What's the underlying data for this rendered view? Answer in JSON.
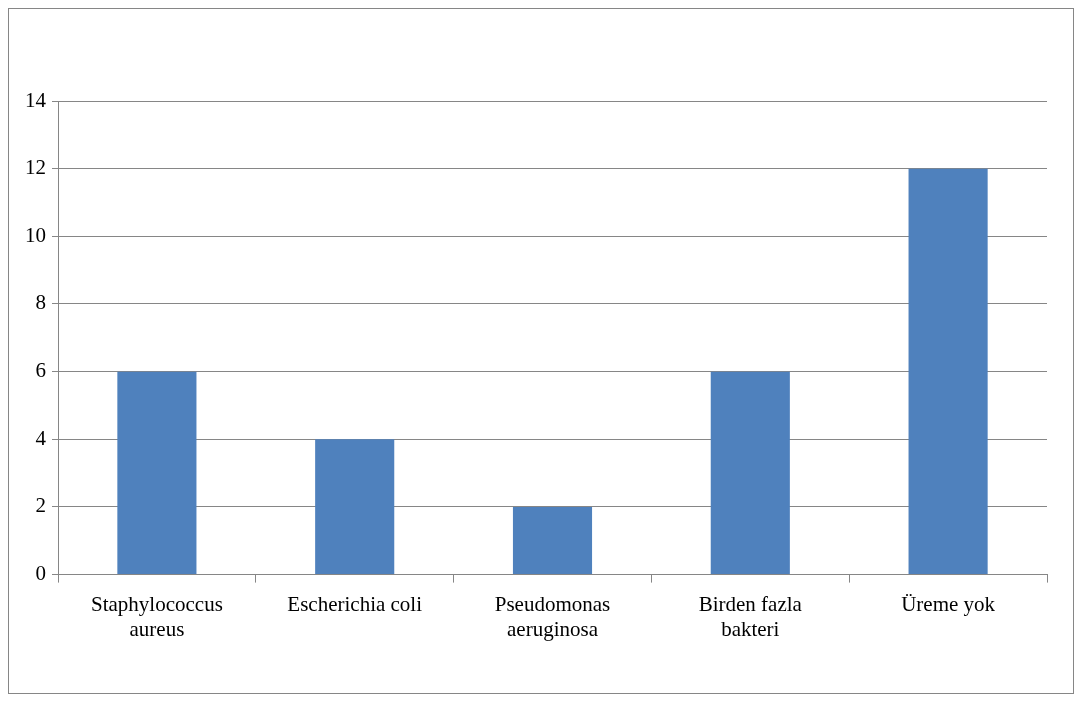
{
  "chart_data": {
    "type": "bar",
    "categories": [
      "Staphylococcus aureus",
      "Escherichia coli",
      "Pseudomonas aeruginosa",
      "Birden fazla bakteri",
      "Üreme yok"
    ],
    "values": [
      6,
      4,
      2,
      6,
      12
    ],
    "color": "#4f81bd",
    "ylim": [
      0,
      14
    ],
    "yticks": [
      0,
      2,
      4,
      6,
      8,
      10,
      12,
      14
    ],
    "grid": "y",
    "legend": false
  }
}
